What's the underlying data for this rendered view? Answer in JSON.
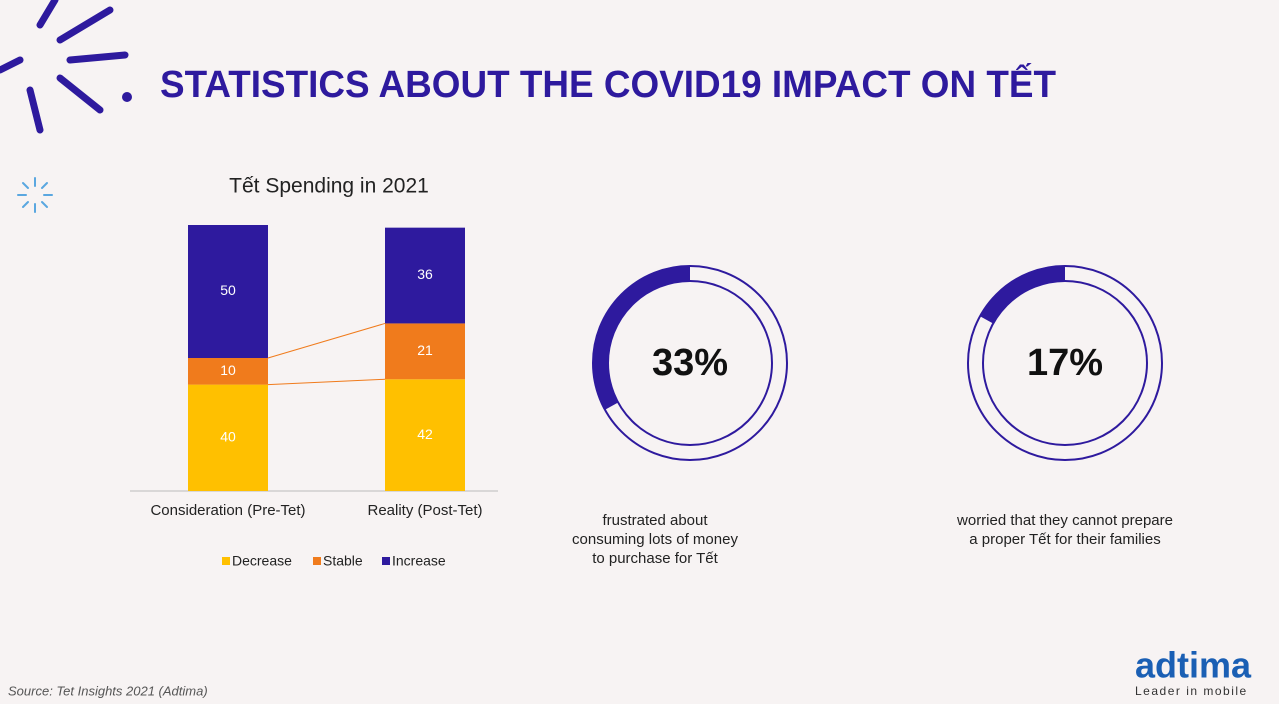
{
  "title": "STATISTICS ABOUT THE COVID19 IMPACT ON TẾT",
  "chart_data": [
    {
      "type": "stacked-bar",
      "title": "Tết Spending in 2021",
      "categories": [
        "Consideration (Pre-Tet)",
        "Reality (Post-Tet)"
      ],
      "series": [
        {
          "name": "Decrease",
          "color": "#ffc000",
          "values": [
            40,
            42
          ]
        },
        {
          "name": "Stable",
          "color": "#f07b1c",
          "values": [
            10,
            21
          ]
        },
        {
          "name": "Increase",
          "color": "#2e1a9e",
          "values": [
            50,
            36
          ]
        }
      ],
      "legend": "bottom"
    },
    {
      "type": "donut",
      "values": [
        33
      ],
      "value_labels": [
        "33%"
      ],
      "color": "#2e1a9e",
      "caption": [
        "frustrated about",
        "consuming lots of money",
        "to purchase for Tết"
      ]
    },
    {
      "type": "donut",
      "values": [
        17
      ],
      "value_labels": [
        "17%"
      ],
      "color": "#2e1a9e",
      "caption": [
        "worried that they cannot prepare",
        "a proper Tết for their families"
      ]
    }
  ],
  "source": "Source: Tet Insights 2021 (Adtima)",
  "logo": {
    "name": "adtima",
    "tagline": "Leader in mobile"
  }
}
